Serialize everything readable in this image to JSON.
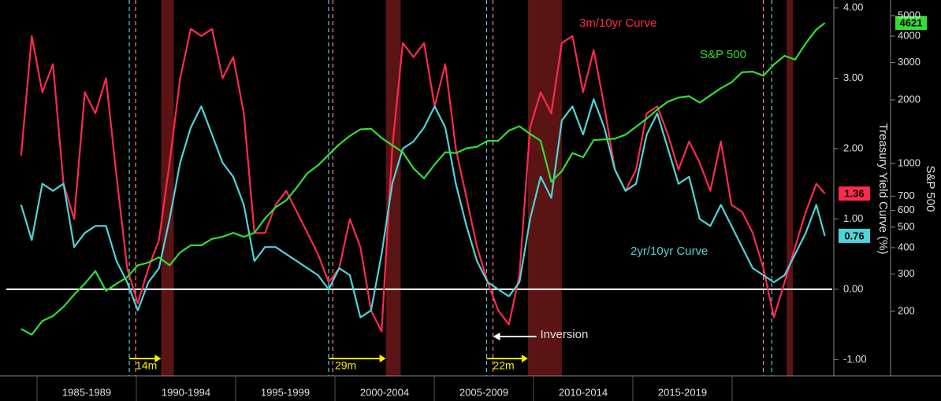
{
  "chart_data": {
    "type": "line",
    "categories": [
      "1985-1989",
      "1990-1994",
      "1995-1999",
      "2000-2004",
      "2005-2009",
      "2010-2014",
      "2015-2019"
    ],
    "x": [
      1984.0,
      1984.5,
      1985.0,
      1985.5,
      1986.0,
      1986.5,
      1987.0,
      1987.5,
      1988.0,
      1988.5,
      1989.0,
      1989.5,
      1990.0,
      1990.5,
      1991.0,
      1991.5,
      1992.0,
      1992.5,
      1993.0,
      1993.5,
      1994.0,
      1994.5,
      1995.0,
      1995.5,
      1996.0,
      1996.5,
      1997.0,
      1997.5,
      1998.0,
      1998.5,
      1999.0,
      1999.5,
      2000.0,
      2000.5,
      2001.0,
      2001.5,
      2002.0,
      2002.5,
      2003.0,
      2003.5,
      2004.0,
      2004.5,
      2005.0,
      2005.5,
      2006.0,
      2006.5,
      2007.0,
      2007.5,
      2008.0,
      2008.5,
      2009.0,
      2009.5,
      2010.0,
      2010.5,
      2011.0,
      2011.5,
      2012.0,
      2012.5,
      2013.0,
      2013.5,
      2014.0,
      2014.5,
      2015.0,
      2015.5,
      2016.0,
      2016.5,
      2017.0,
      2017.5,
      2018.0,
      2018.5,
      2019.0,
      2019.5,
      2020.0,
      2020.5,
      2021.0,
      2021.5,
      2021.9
    ],
    "series": [
      {
        "name": "3m/10yr Curve",
        "color": "#ff2a4d",
        "last_label": "1.36",
        "values": [
          1.9,
          3.6,
          2.8,
          3.2,
          1.5,
          1.0,
          2.8,
          2.5,
          3.0,
          1.6,
          0.3,
          -0.2,
          0.3,
          0.7,
          1.8,
          3.0,
          3.7,
          3.6,
          3.7,
          3.0,
          3.3,
          2.5,
          0.8,
          0.8,
          1.2,
          1.4,
          1.1,
          0.8,
          0.5,
          0.1,
          0.3,
          1.0,
          0.6,
          -0.3,
          -0.6,
          2.0,
          3.5,
          3.3,
          3.5,
          2.6,
          3.2,
          2.0,
          1.3,
          0.6,
          0.1,
          -0.3,
          -0.5,
          0.2,
          2.3,
          2.8,
          2.5,
          3.5,
          3.6,
          2.8,
          3.4,
          2.6,
          1.7,
          1.4,
          1.7,
          2.5,
          2.6,
          2.2,
          1.7,
          2.1,
          1.8,
          1.4,
          2.1,
          1.2,
          1.1,
          0.8,
          0.3,
          -0.4,
          0.1,
          0.6,
          1.1,
          1.5,
          1.36
        ]
      },
      {
        "name": "2yr/10yr Curve",
        "color": "#4fd3d9",
        "last_label": "0.76",
        "values": [
          1.2,
          0.7,
          1.5,
          1.4,
          1.5,
          0.6,
          0.8,
          0.9,
          0.9,
          0.4,
          0.1,
          -0.3,
          0.1,
          0.3,
          1.0,
          1.8,
          2.3,
          2.6,
          2.2,
          1.8,
          1.6,
          1.2,
          0.4,
          0.6,
          0.6,
          0.5,
          0.4,
          0.3,
          0.2,
          0,
          0.3,
          0.2,
          -0.4,
          -0.3,
          0.5,
          1.5,
          2.0,
          2.1,
          2.3,
          2.6,
          2.3,
          1.5,
          0.9,
          0.4,
          0.1,
          0,
          -0.1,
          0.1,
          1.0,
          1.6,
          1.3,
          2.4,
          2.6,
          2.2,
          2.7,
          2.3,
          1.7,
          1.4,
          1.5,
          2.2,
          2.5,
          2.0,
          1.5,
          1.6,
          1.0,
          0.9,
          1.2,
          0.9,
          0.6,
          0.3,
          0.2,
          0.1,
          0.2,
          0.5,
          0.8,
          1.2,
          0.76
        ]
      },
      {
        "name": "S&P 500",
        "color": "#33dd33",
        "axis": "y2",
        "last_label": "4621",
        "values": [
          165,
          155,
          180,
          190,
          210,
          240,
          270,
          310,
          250,
          270,
          290,
          330,
          340,
          360,
          330,
          380,
          410,
          410,
          440,
          450,
          470,
          450,
          470,
          550,
          620,
          670,
          770,
          900,
          980,
          1100,
          1230,
          1350,
          1450,
          1460,
          1320,
          1220,
          1130,
          950,
          850,
          990,
          1130,
          1120,
          1180,
          1200,
          1280,
          1280,
          1430,
          1500,
          1380,
          1280,
          820,
          920,
          1120,
          1070,
          1290,
          1300,
          1310,
          1370,
          1490,
          1630,
          1800,
          1960,
          2050,
          2080,
          1940,
          2100,
          2270,
          2420,
          2700,
          2720,
          2600,
          2940,
          3230,
          3100,
          3700,
          4300,
          4621
        ]
      }
    ],
    "xlim": [
      1983.3,
      2022.25
    ],
    "ylim": [
      -1.23,
      4.0
    ],
    "yticks": [
      {
        "value": 4,
        "label": "4.00"
      },
      {
        "value": 3,
        "label": "3.00"
      },
      {
        "value": 2,
        "label": "2.00"
      },
      {
        "value": 1,
        "label": "1.00"
      },
      {
        "value": 0,
        "label": "0.00"
      },
      {
        "value": -1,
        "label": "-1.00"
      }
    ],
    "y_label": "Treasury Yield Curve (%)",
    "y2lim": [
      99,
      5445
    ],
    "y2_log": true,
    "y2ticks": [
      200,
      300,
      400,
      500,
      600,
      700,
      1000,
      2000,
      3000,
      4000,
      5000
    ],
    "y2_label": "S&P 500",
    "recessions": [
      [
        1990.6,
        1991.2
      ],
      [
        2001.2,
        2001.9
      ],
      [
        2007.9,
        2009.5
      ],
      [
        2020.1,
        2020.4
      ]
    ],
    "inversions_2yr": [
      1989.1,
      1998.5,
      2005.95,
      2019.4
    ],
    "inversions_3m": [
      1989.4,
      1998.7,
      2006.25,
      2019.0
    ],
    "lead_times": [
      "14m",
      "29m",
      "22m"
    ],
    "inversion_note": "Inversion",
    "inversion_note_x": 2006.25
  }
}
